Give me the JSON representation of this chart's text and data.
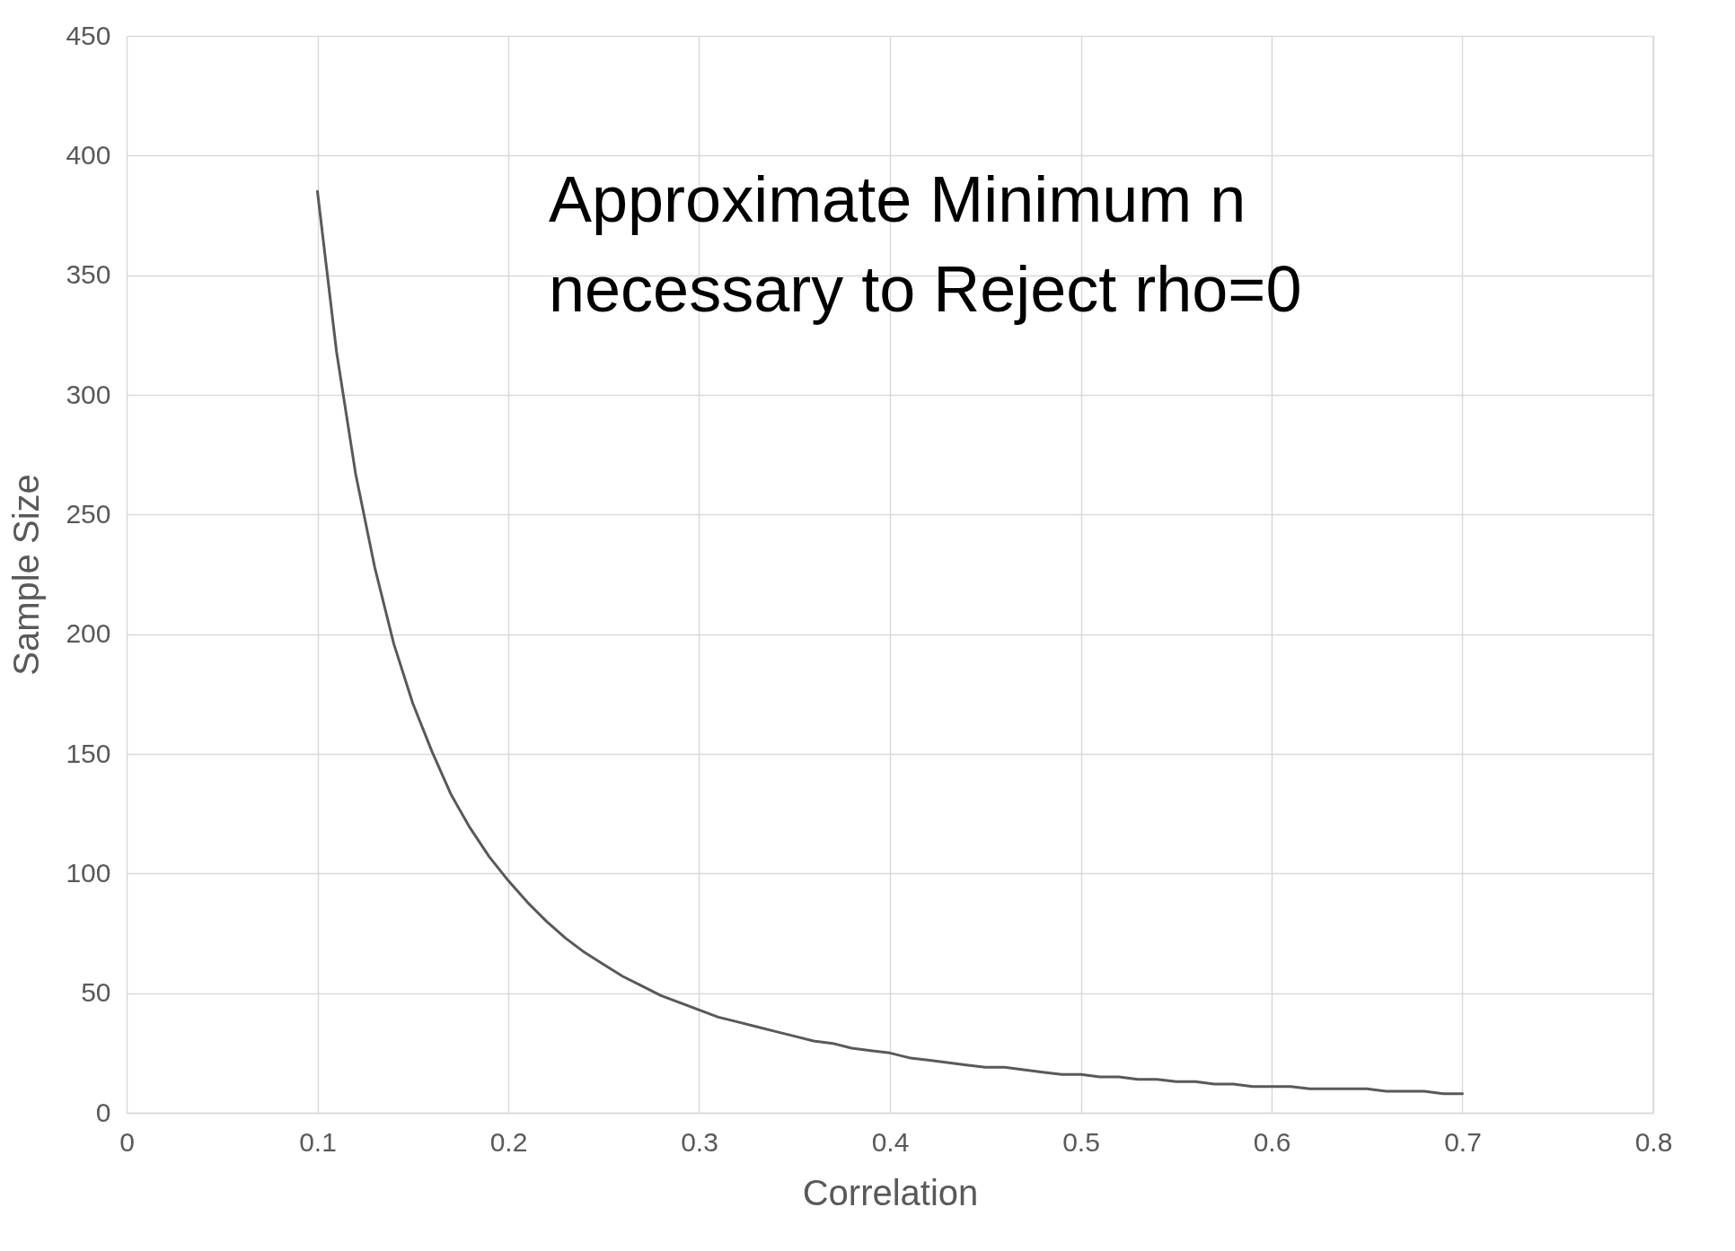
{
  "chart_data": {
    "type": "line",
    "xlabel": "Correlation",
    "ylabel": "Sample Size",
    "annotations": [
      "Approximate Minimum n\nnecessary to Reject rho=0"
    ],
    "x": [
      0.1,
      0.11,
      0.12,
      0.13,
      0.14,
      0.15,
      0.16,
      0.17,
      0.18,
      0.19,
      0.2,
      0.21,
      0.22,
      0.23,
      0.24,
      0.25,
      0.26,
      0.27,
      0.28,
      0.29,
      0.3,
      0.31,
      0.32,
      0.33,
      0.34,
      0.35,
      0.36,
      0.37,
      0.38,
      0.39,
      0.4,
      0.41,
      0.42,
      0.43,
      0.44,
      0.45,
      0.46,
      0.47,
      0.48,
      0.49,
      0.5,
      0.51,
      0.52,
      0.53,
      0.54,
      0.55,
      0.56,
      0.57,
      0.58,
      0.59,
      0.6,
      0.61,
      0.62,
      0.63,
      0.64,
      0.65,
      0.66,
      0.67,
      0.68,
      0.69,
      0.7
    ],
    "series": [
      {
        "color": "#595959",
        "values": [
          385,
          318,
          267,
          228,
          196,
          171,
          151,
          133,
          119,
          107,
          97,
          88,
          80,
          73,
          67,
          62,
          57,
          53,
          49,
          46,
          43,
          40,
          38,
          36,
          34,
          32,
          30,
          29,
          27,
          26,
          25,
          23,
          22,
          21,
          20,
          19,
          19,
          18,
          17,
          16,
          16,
          15,
          15,
          14,
          14,
          13,
          13,
          12,
          12,
          11,
          11,
          11,
          10,
          10,
          10,
          10,
          9,
          9,
          9,
          8,
          8
        ]
      }
    ],
    "xlim": [
      0,
      0.8
    ],
    "xticks": [
      0,
      0.1,
      0.2,
      0.3,
      0.4,
      0.5,
      0.6,
      0.7,
      0.8
    ],
    "ylim": [
      0,
      450
    ],
    "yticks": [
      0,
      50,
      100,
      150,
      200,
      250,
      300,
      350,
      400,
      450
    ],
    "grid": true,
    "marker": "none",
    "line_style": "solid"
  }
}
